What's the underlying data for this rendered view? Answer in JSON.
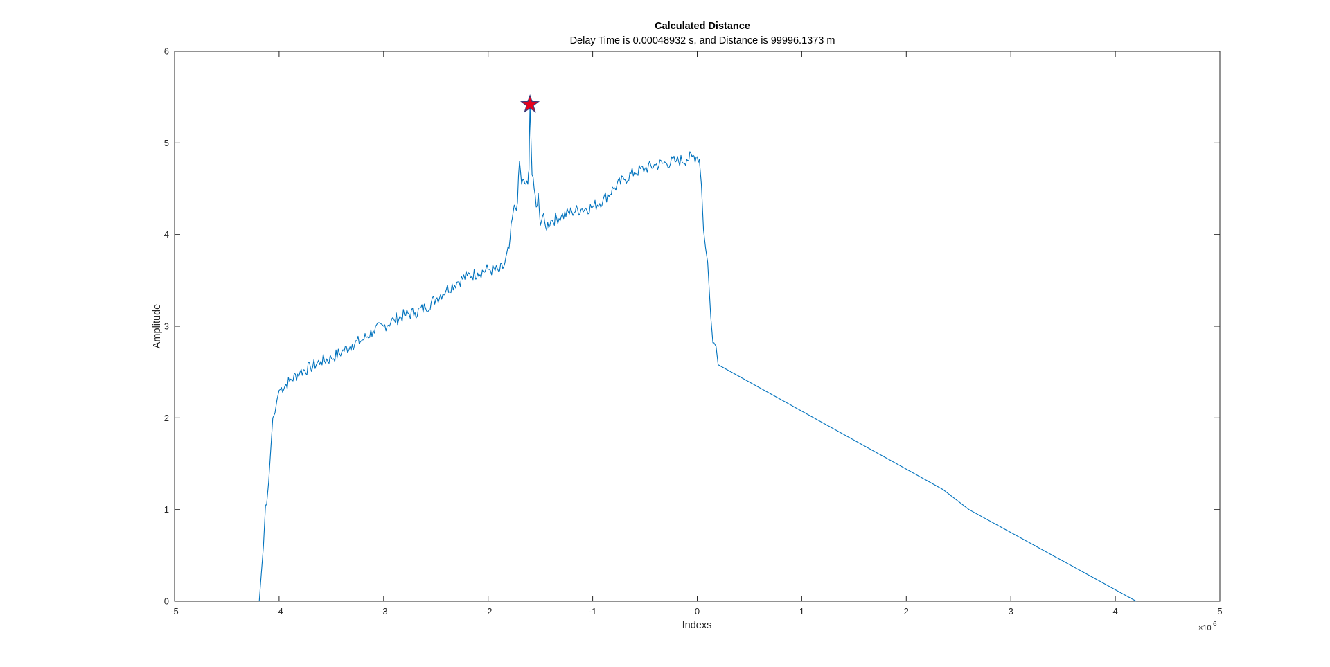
{
  "chart_data": {
    "type": "line",
    "title": "Calculated Distance",
    "subtitle": "Delay Time is 0.00048932 s, and Distance is 99996.1373 m",
    "xlabel": "Indexs",
    "ylabel": "Amplitude",
    "x_exponent_base": "×10",
    "x_exponent_power": "6",
    "xlim": [
      -5,
      5
    ],
    "ylim": [
      0,
      6
    ],
    "x_units_scale": 1000000,
    "xticks": [
      -5,
      -4,
      -3,
      -2,
      -1,
      0,
      1,
      2,
      3,
      4,
      5
    ],
    "yticks": [
      0,
      1,
      2,
      3,
      4,
      5,
      6
    ],
    "grid": false,
    "legend": "none",
    "colors": {
      "series": "#0072BD",
      "marker_fill": "#E8001C",
      "marker_edge": "#3B3B7A",
      "axes": "#262626"
    },
    "series": [
      {
        "x": [
          -4.19,
          -4.17,
          -4.15,
          -4.13,
          -4.12,
          -4.1,
          -4.08,
          -4.06,
          -4.04,
          -4.02,
          -4.0,
          -3.9,
          -3.8,
          -3.7,
          -3.6,
          -3.5,
          -3.4,
          -3.3,
          -3.2,
          -3.1,
          -3.0,
          -2.9,
          -2.8,
          -2.7,
          -2.6,
          -2.5,
          -2.4,
          -2.3,
          -2.2,
          -2.1,
          -2.0,
          -1.9,
          -1.85,
          -1.8,
          -1.76,
          -1.72,
          -1.7,
          -1.68,
          -1.66,
          -1.64,
          -1.62,
          -1.61,
          -1.6,
          -1.58,
          -1.56,
          -1.54,
          -1.52,
          -1.5,
          -1.48,
          -1.45,
          -1.4,
          -1.3,
          -1.2,
          -1.1,
          -1.0,
          -0.9,
          -0.8,
          -0.7,
          -0.6,
          -0.5,
          -0.4,
          -0.3,
          -0.2,
          -0.1,
          -0.05,
          0.0,
          0.02,
          0.04,
          0.06,
          0.08,
          0.1,
          0.11,
          0.13,
          0.15,
          0.16,
          0.18,
          0.2,
          2.35,
          2.6,
          4.2
        ],
        "y": [
          0.0,
          0.3,
          0.6,
          1.05,
          1.05,
          1.3,
          1.65,
          2.0,
          2.05,
          2.2,
          2.3,
          2.4,
          2.5,
          2.55,
          2.62,
          2.65,
          2.72,
          2.8,
          2.85,
          2.95,
          3.0,
          3.07,
          3.12,
          3.15,
          3.2,
          3.3,
          3.4,
          3.48,
          3.55,
          3.58,
          3.62,
          3.6,
          3.65,
          3.85,
          4.25,
          4.35,
          4.8,
          4.55,
          4.6,
          4.55,
          4.55,
          4.7,
          5.42,
          4.65,
          4.5,
          4.3,
          4.45,
          4.1,
          4.2,
          4.08,
          4.15,
          4.2,
          4.25,
          4.28,
          4.3,
          4.38,
          4.5,
          4.6,
          4.68,
          4.72,
          4.76,
          4.78,
          4.8,
          4.82,
          4.85,
          4.85,
          4.82,
          4.55,
          4.05,
          3.85,
          3.7,
          3.5,
          3.1,
          2.82,
          2.82,
          2.78,
          2.58,
          1.22,
          1.0,
          0.0
        ]
      }
    ],
    "marker": {
      "x": -1.6,
      "y": 5.42,
      "shape": "star"
    }
  }
}
